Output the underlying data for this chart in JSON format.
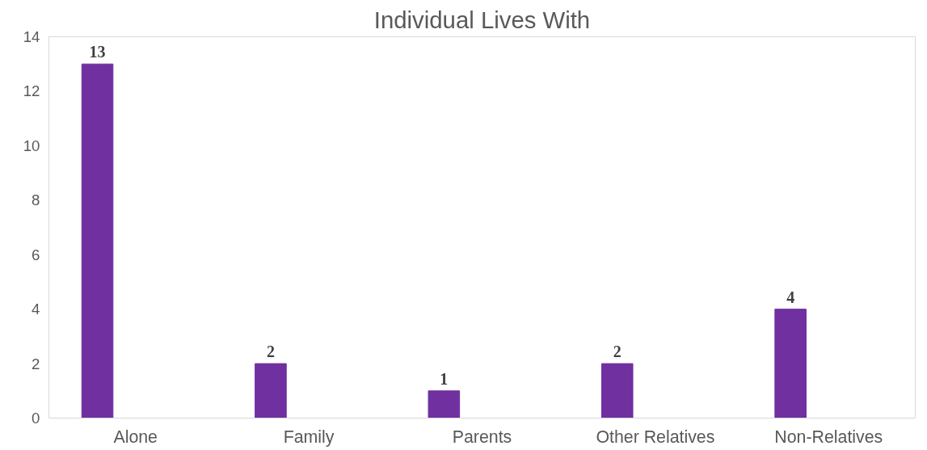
{
  "chart_data": {
    "type": "bar",
    "title": "Individual Lives With",
    "categories": [
      "Alone",
      "Family",
      "Parents",
      "Other Relatives",
      "Non-Relatives"
    ],
    "values": [
      13,
      2,
      1,
      2,
      4
    ],
    "color": "#7030a0",
    "ylim": [
      0,
      14
    ],
    "yticks": [
      0,
      2,
      4,
      6,
      8,
      10,
      12,
      14
    ],
    "grid": false,
    "data_labels": true
  }
}
